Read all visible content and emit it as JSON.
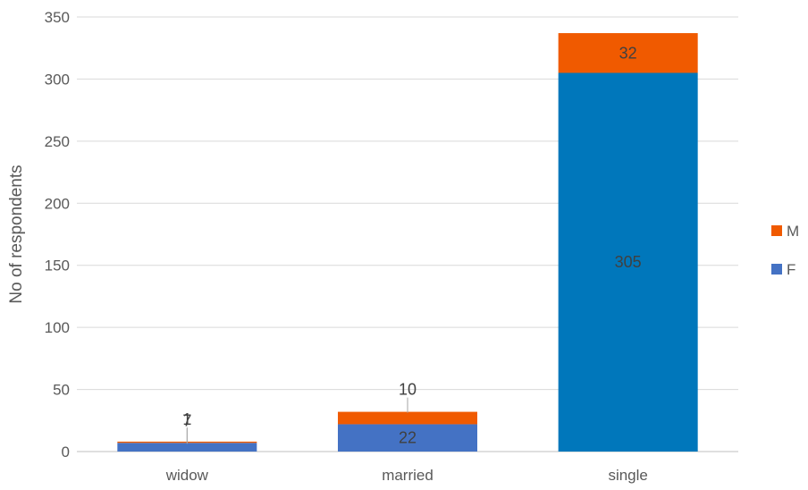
{
  "chart_data": {
    "type": "bar",
    "stacked": true,
    "categories": [
      "widow",
      "married",
      "single"
    ],
    "series": [
      {
        "name": "F",
        "values": [
          7,
          22,
          305
        ],
        "colors": [
          "#4472C4",
          "#4472C4",
          "#0077BB"
        ]
      },
      {
        "name": "M",
        "values": [
          1,
          10,
          32
        ],
        "color": "#F05A00"
      }
    ],
    "ylabel": "No of respondents",
    "xlabel": "",
    "ylim": [
      0,
      350
    ],
    "yticks": [
      0,
      50,
      100,
      150,
      200,
      250,
      300,
      350
    ],
    "grid": true,
    "legend": {
      "placement": "right",
      "order": [
        "M",
        "F"
      ]
    }
  }
}
